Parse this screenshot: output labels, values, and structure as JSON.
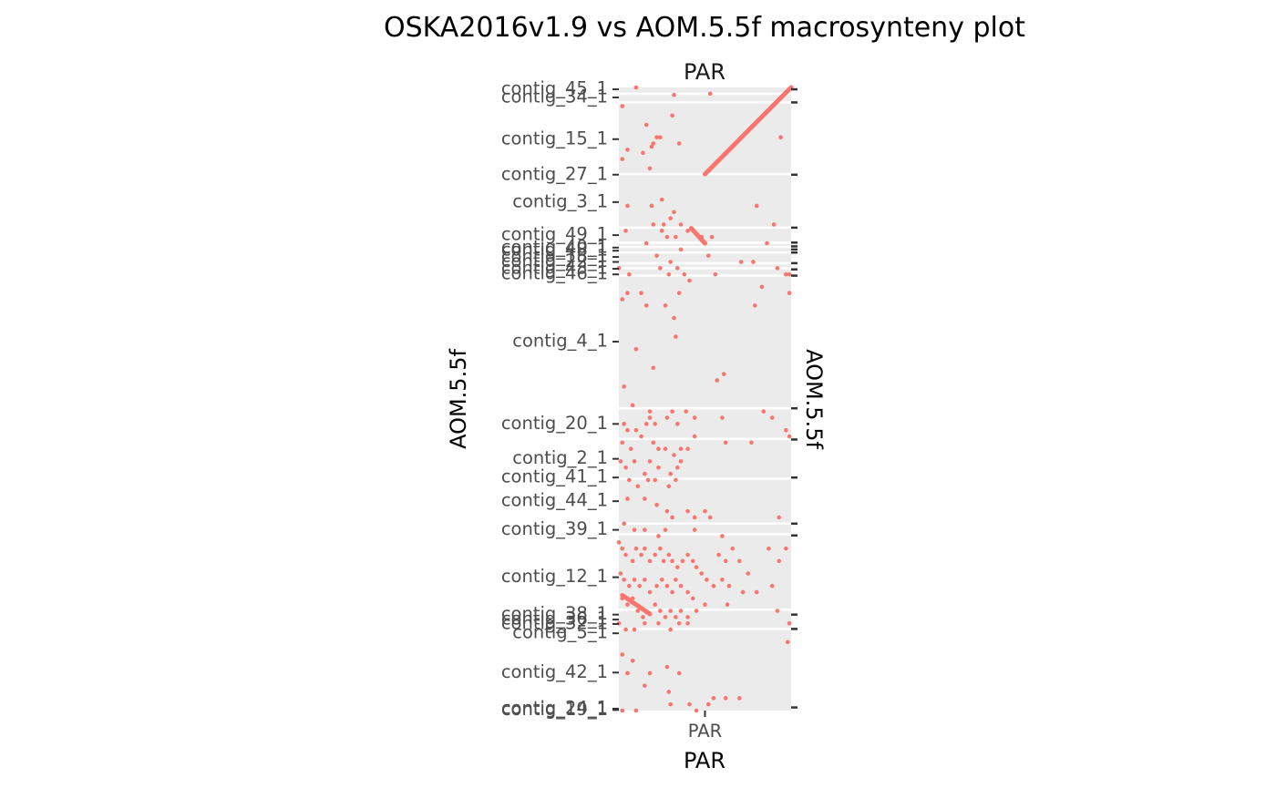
{
  "chart_data": {
    "type": "scatter",
    "title": "OSKA2016v1.9 vs AOM.5.5f macrosynteny plot",
    "facet_strip_label": "PAR",
    "xlabel": "PAR",
    "ylabel": "AOM.5.5f",
    "ylabel_right": "AOM.5.5f",
    "x_tick_labels": [
      "PAR"
    ],
    "x_chromosome": "PAR",
    "x_range": [
      0,
      1
    ],
    "y_range": [
      0,
      1
    ],
    "y_scale_note": "chromosome positions along AOM.5.5f, top = start",
    "y_contig_labels": [
      {
        "name": "contig_45_1",
        "pos": 0.003
      },
      {
        "name": "contig_34_1",
        "pos": 0.016
      },
      {
        "name": "contig_15_1",
        "pos": 0.083
      },
      {
        "name": "contig_27_1",
        "pos": 0.14
      },
      {
        "name": "contig_3_1",
        "pos": 0.184
      },
      {
        "name": "contig_49_1",
        "pos": 0.237
      },
      {
        "name": "contig_40_1",
        "pos": 0.257
      },
      {
        "name": "contig_48_1",
        "pos": 0.262
      },
      {
        "name": "contig_18_1",
        "pos": 0.272
      },
      {
        "name": "contig_22_1",
        "pos": 0.28
      },
      {
        "name": "contig_43_1",
        "pos": 0.291
      },
      {
        "name": "contig_46_1",
        "pos": 0.3
      },
      {
        "name": "contig_4_1",
        "pos": 0.408
      },
      {
        "name": "contig_20_1",
        "pos": 0.54
      },
      {
        "name": "contig_2_1",
        "pos": 0.596
      },
      {
        "name": "contig_41_1",
        "pos": 0.626
      },
      {
        "name": "contig_44_1",
        "pos": 0.664
      },
      {
        "name": "contig_39_1",
        "pos": 0.71
      },
      {
        "name": "contig_12_1",
        "pos": 0.786
      },
      {
        "name": "contig_38_1",
        "pos": 0.846
      },
      {
        "name": "contig_36_1",
        "pos": 0.854
      },
      {
        "name": "contig_32_1",
        "pos": 0.861
      },
      {
        "name": "contig_5_1",
        "pos": 0.876
      },
      {
        "name": "contig_42_1",
        "pos": 0.939
      },
      {
        "name": "contig_24_1",
        "pos": 0.997
      },
      {
        "name": "contig_19_1",
        "pos": 0.999
      }
    ],
    "contig_boundaries": [
      0.01,
      0.024,
      0.139,
      0.225,
      0.249,
      0.256,
      0.265,
      0.282,
      0.29,
      0.302,
      0.515,
      0.564,
      0.628,
      0.7,
      0.717,
      0.838,
      0.869
    ],
    "right_ticks": [
      0.003,
      0.024,
      0.14,
      0.225,
      0.249,
      0.255,
      0.26,
      0.265,
      0.282,
      0.292,
      0.302,
      0.515,
      0.565,
      0.626,
      0.7,
      0.719,
      0.846,
      0.869,
      0.995
    ],
    "series": [
      {
        "color": "#F8766D",
        "segments": [
          {
            "x": [
              0.5,
              1.0
            ],
            "y": [
              0.139,
              0.0
            ]
          },
          {
            "x": [
              0.42,
              0.5
            ],
            "y": [
              0.226,
              0.25
            ]
          },
          {
            "x": [
              0.02,
              0.18
            ],
            "y": [
              0.815,
              0.845
            ]
          }
        ],
        "points": [
          [
            0.1,
            0.0
          ],
          [
            0.53,
            0.01
          ],
          [
            0.32,
            0.012
          ],
          [
            0.02,
            0.03
          ],
          [
            0.31,
            0.045
          ],
          [
            0.16,
            0.06
          ],
          [
            0.22,
            0.08
          ],
          [
            0.24,
            0.08
          ],
          [
            0.2,
            0.09
          ],
          [
            0.35,
            0.09
          ],
          [
            0.19,
            0.095
          ],
          [
            0.05,
            0.1
          ],
          [
            0.14,
            0.105
          ],
          [
            0.02,
            0.115
          ],
          [
            0.94,
            0.08
          ],
          [
            0.18,
            0.13
          ],
          [
            0.25,
            0.18
          ],
          [
            0.32,
            0.2
          ],
          [
            0.05,
            0.19
          ],
          [
            0.19,
            0.19
          ],
          [
            0.8,
            0.19
          ],
          [
            0.26,
            0.22
          ],
          [
            0.3,
            0.21
          ],
          [
            0.25,
            0.23
          ],
          [
            0.36,
            0.22
          ],
          [
            0.33,
            0.24
          ],
          [
            0.4,
            0.23
          ],
          [
            0.48,
            0.24
          ],
          [
            0.54,
            0.24
          ],
          [
            0.9,
            0.22
          ],
          [
            0.86,
            0.25
          ],
          [
            0.28,
            0.24
          ],
          [
            0.2,
            0.22
          ],
          [
            0.04,
            0.23
          ],
          [
            0.16,
            0.25
          ],
          [
            0.52,
            0.27
          ],
          [
            0.36,
            0.26
          ],
          [
            0.22,
            0.27
          ],
          [
            0.3,
            0.28
          ],
          [
            0.0,
            0.29
          ],
          [
            0.06,
            0.3
          ],
          [
            0.24,
            0.29
          ],
          [
            0.29,
            0.3
          ],
          [
            0.34,
            0.29
          ],
          [
            0.38,
            0.3
          ],
          [
            0.41,
            0.31
          ],
          [
            0.56,
            0.3
          ],
          [
            0.71,
            0.28
          ],
          [
            0.78,
            0.28
          ],
          [
            0.97,
            0.3
          ],
          [
            0.99,
            0.3
          ],
          [
            0.92,
            0.29
          ],
          [
            0.05,
            0.33
          ],
          [
            0.13,
            0.33
          ],
          [
            0.16,
            0.35
          ],
          [
            0.27,
            0.35
          ],
          [
            0.35,
            0.33
          ],
          [
            0.02,
            0.34
          ],
          [
            0.32,
            0.37
          ],
          [
            0.79,
            0.35
          ],
          [
            0.83,
            0.32
          ],
          [
            0.99,
            0.33
          ],
          [
            0.33,
            0.4
          ],
          [
            0.1,
            0.42
          ],
          [
            0.2,
            0.45
          ],
          [
            0.61,
            0.46
          ],
          [
            0.57,
            0.47
          ],
          [
            0.03,
            0.48
          ],
          [
            0.08,
            0.51
          ],
          [
            0.18,
            0.52
          ],
          [
            0.03,
            0.54
          ],
          [
            0.05,
            0.55
          ],
          [
            0.1,
            0.55
          ],
          [
            0.16,
            0.54
          ],
          [
            0.18,
            0.53
          ],
          [
            0.21,
            0.54
          ],
          [
            0.28,
            0.53
          ],
          [
            0.31,
            0.52
          ],
          [
            0.34,
            0.54
          ],
          [
            0.39,
            0.52
          ],
          [
            0.44,
            0.53
          ],
          [
            0.6,
            0.53
          ],
          [
            0.84,
            0.52
          ],
          [
            0.89,
            0.53
          ],
          [
            0.97,
            0.55
          ],
          [
            0.99,
            0.56
          ],
          [
            0.02,
            0.57
          ],
          [
            0.07,
            0.58
          ],
          [
            0.13,
            0.56
          ],
          [
            0.2,
            0.57
          ],
          [
            0.23,
            0.58
          ],
          [
            0.27,
            0.58
          ],
          [
            0.32,
            0.59
          ],
          [
            0.36,
            0.58
          ],
          [
            0.44,
            0.56
          ],
          [
            0.01,
            0.6
          ],
          [
            0.04,
            0.61
          ],
          [
            0.09,
            0.6
          ],
          [
            0.15,
            0.62
          ],
          [
            0.18,
            0.6
          ],
          [
            0.23,
            0.61
          ],
          [
            0.3,
            0.62
          ],
          [
            0.34,
            0.61
          ],
          [
            0.36,
            0.6
          ],
          [
            0.4,
            0.58
          ],
          [
            0.62,
            0.57
          ],
          [
            0.77,
            0.57
          ],
          [
            0.06,
            0.63
          ],
          [
            0.11,
            0.64
          ],
          [
            0.17,
            0.63
          ],
          [
            0.21,
            0.63
          ],
          [
            0.29,
            0.64
          ],
          [
            0.33,
            0.63
          ],
          [
            0.05,
            0.66
          ],
          [
            0.15,
            0.66
          ],
          [
            0.22,
            0.67
          ],
          [
            0.28,
            0.68
          ],
          [
            0.31,
            0.69
          ],
          [
            0.4,
            0.68
          ],
          [
            0.44,
            0.69
          ],
          [
            0.5,
            0.68
          ],
          [
            0.53,
            0.69
          ],
          [
            0.93,
            0.69
          ],
          [
            0.03,
            0.7
          ],
          [
            0.09,
            0.71
          ],
          [
            0.15,
            0.71
          ],
          [
            0.23,
            0.72
          ],
          [
            0.27,
            0.71
          ],
          [
            0.44,
            0.71
          ],
          [
            0.6,
            0.72
          ],
          [
            0.0,
            0.73
          ],
          [
            0.02,
            0.74
          ],
          [
            0.04,
            0.75
          ],
          [
            0.08,
            0.76
          ],
          [
            0.1,
            0.74
          ],
          [
            0.13,
            0.75
          ],
          [
            0.15,
            0.74
          ],
          [
            0.18,
            0.76
          ],
          [
            0.21,
            0.75
          ],
          [
            0.24,
            0.74
          ],
          [
            0.26,
            0.76
          ],
          [
            0.29,
            0.75
          ],
          [
            0.31,
            0.76
          ],
          [
            0.34,
            0.77
          ],
          [
            0.37,
            0.76
          ],
          [
            0.4,
            0.75
          ],
          [
            0.43,
            0.76
          ],
          [
            0.45,
            0.77
          ],
          [
            0.48,
            0.78
          ],
          [
            0.51,
            0.79
          ],
          [
            0.58,
            0.75
          ],
          [
            0.62,
            0.76
          ],
          [
            0.66,
            0.74
          ],
          [
            0.7,
            0.76
          ],
          [
            0.75,
            0.78
          ],
          [
            0.87,
            0.74
          ],
          [
            0.93,
            0.76
          ],
          [
            0.97,
            0.74
          ],
          [
            0.01,
            0.78
          ],
          [
            0.03,
            0.79
          ],
          [
            0.06,
            0.8
          ],
          [
            0.09,
            0.79
          ],
          [
            0.12,
            0.8
          ],
          [
            0.15,
            0.79
          ],
          [
            0.18,
            0.81
          ],
          [
            0.22,
            0.8
          ],
          [
            0.25,
            0.79
          ],
          [
            0.28,
            0.8
          ],
          [
            0.31,
            0.81
          ],
          [
            0.33,
            0.79
          ],
          [
            0.36,
            0.8
          ],
          [
            0.4,
            0.81
          ],
          [
            0.43,
            0.82
          ],
          [
            0.55,
            0.8
          ],
          [
            0.6,
            0.79
          ],
          [
            0.64,
            0.8
          ],
          [
            0.72,
            0.81
          ],
          [
            0.8,
            0.81
          ],
          [
            0.89,
            0.8
          ],
          [
            0.02,
            0.82
          ],
          [
            0.05,
            0.83
          ],
          [
            0.08,
            0.82
          ],
          [
            0.11,
            0.84
          ],
          [
            0.14,
            0.85
          ],
          [
            0.21,
            0.83
          ],
          [
            0.24,
            0.84
          ],
          [
            0.27,
            0.85
          ],
          [
            0.3,
            0.84
          ],
          [
            0.33,
            0.85
          ],
          [
            0.36,
            0.84
          ],
          [
            0.4,
            0.85
          ],
          [
            0.45,
            0.84
          ],
          [
            0.5,
            0.83
          ],
          [
            0.63,
            0.83
          ],
          [
            0.92,
            0.84
          ],
          [
            0.0,
            0.86
          ],
          [
            0.04,
            0.87
          ],
          [
            0.09,
            0.87
          ],
          [
            0.15,
            0.86
          ],
          [
            0.23,
            0.86
          ],
          [
            0.3,
            0.87
          ],
          [
            0.35,
            0.86
          ],
          [
            0.4,
            0.86
          ],
          [
            0.99,
            0.86
          ],
          [
            0.98,
            0.89
          ],
          [
            0.02,
            0.91
          ],
          [
            0.08,
            0.92
          ],
          [
            0.18,
            0.94
          ],
          [
            0.28,
            0.93
          ],
          [
            0.35,
            0.94
          ],
          [
            0.05,
            0.94
          ],
          [
            0.15,
            0.96
          ],
          [
            0.29,
            0.97
          ],
          [
            0.55,
            0.98
          ],
          [
            0.62,
            0.98
          ],
          [
            0.52,
            0.99
          ],
          [
            0.7,
            0.98
          ],
          [
            0.02,
            1.0
          ],
          [
            0.1,
            1.0
          ],
          [
            0.3,
            0.99
          ],
          [
            0.41,
            0.99
          ],
          [
            0.45,
            1.0
          ]
        ]
      }
    ]
  }
}
